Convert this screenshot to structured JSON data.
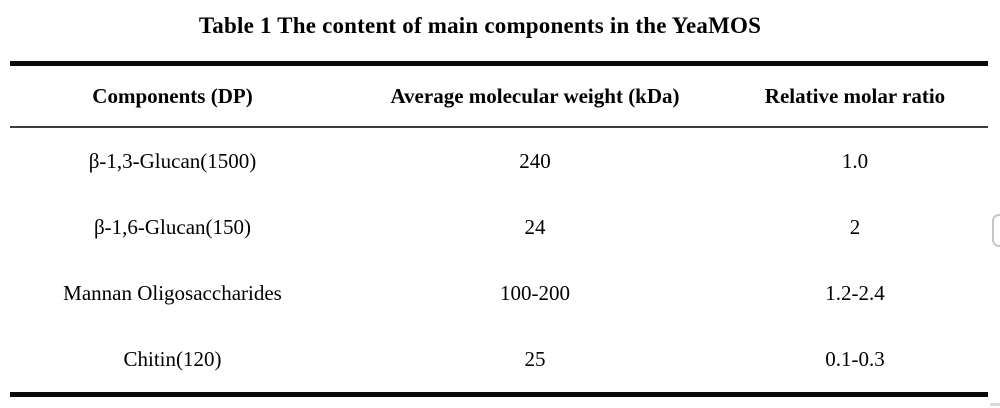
{
  "caption": "Table 1 The content of main components in the YeaMOS",
  "table": {
    "columns": [
      "Components (DP)",
      "Average molecular weight (kDa)",
      "Relative molar ratio"
    ],
    "rows": [
      [
        "β-1,3-Glucan(1500)",
        "240",
        "1.0"
      ],
      [
        "β-1,6-Glucan(150)",
        "24",
        "2"
      ],
      [
        "Mannan Oligosaccharides",
        "100-200",
        "1.2-2.4"
      ],
      [
        "Chitin(120)",
        "25",
        "0.1-0.3"
      ]
    ]
  },
  "colors": {
    "text": "#000000",
    "rule_thick": "#0b0b0b",
    "rule_thin": "#3d3d3d",
    "background": "#ffffff",
    "edge_fragment_border": "#c6c6c6"
  }
}
